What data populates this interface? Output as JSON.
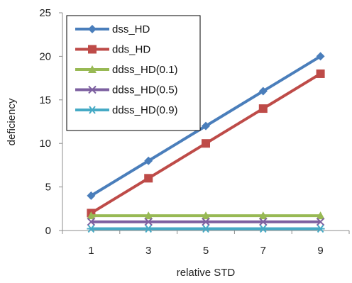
{
  "chart_data": {
    "type": "line",
    "title": "",
    "xlabel": "relative STD",
    "ylabel": "deficiency",
    "x": [
      1,
      3,
      5,
      7,
      9
    ],
    "xticks": [
      "1",
      "3",
      "5",
      "7",
      "9"
    ],
    "ylim": [
      0,
      25
    ],
    "yticks": [
      "0",
      "5",
      "10",
      "15",
      "20",
      "25"
    ],
    "grid": false,
    "legend_position": "top-left",
    "series": [
      {
        "name": "dss_HD",
        "values": [
          4,
          8,
          12,
          16,
          20
        ],
        "color": "#4a7ebb",
        "marker": "diamond"
      },
      {
        "name": "dds_HD",
        "values": [
          2,
          6,
          10,
          14,
          18
        ],
        "color": "#be4b48",
        "marker": "square"
      },
      {
        "name": "ddss_HD(0.1)",
        "values": [
          1.7,
          1.7,
          1.7,
          1.7,
          1.7
        ],
        "color": "#98b954",
        "marker": "triangle"
      },
      {
        "name": "ddss_HD(0.5)",
        "values": [
          1.0,
          1.0,
          1.0,
          1.0,
          1.0
        ],
        "color": "#7d60a0",
        "marker": "x"
      },
      {
        "name": "ddss_HD(0.9)",
        "values": [
          0.2,
          0.2,
          0.2,
          0.2,
          0.2
        ],
        "color": "#46aac5",
        "marker": "star"
      }
    ]
  }
}
